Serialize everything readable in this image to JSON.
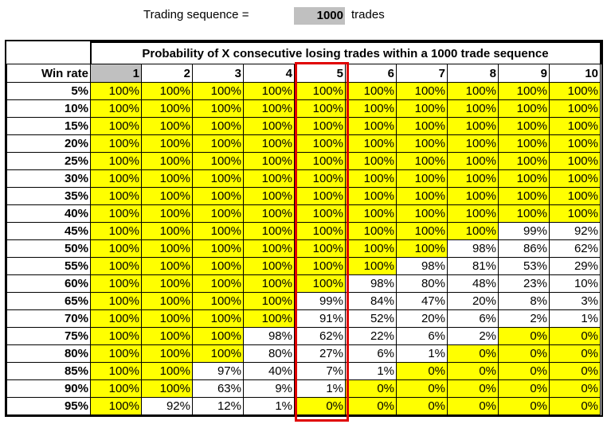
{
  "header": {
    "label": "Trading sequence =",
    "value": "1000",
    "unit": "trades"
  },
  "table": {
    "title": "Probability of X consecutive losing trades within a 1000 trade sequence",
    "row_header": "Win rate",
    "columns": [
      "1",
      "2",
      "3",
      "4",
      "5",
      "6",
      "7",
      "8",
      "9",
      "10"
    ],
    "rows": [
      {
        "label": "5%",
        "cells": [
          "100%",
          "100%",
          "100%",
          "100%",
          "100%",
          "100%",
          "100%",
          "100%",
          "100%",
          "100%"
        ]
      },
      {
        "label": "10%",
        "cells": [
          "100%",
          "100%",
          "100%",
          "100%",
          "100%",
          "100%",
          "100%",
          "100%",
          "100%",
          "100%"
        ]
      },
      {
        "label": "15%",
        "cells": [
          "100%",
          "100%",
          "100%",
          "100%",
          "100%",
          "100%",
          "100%",
          "100%",
          "100%",
          "100%"
        ]
      },
      {
        "label": "20%",
        "cells": [
          "100%",
          "100%",
          "100%",
          "100%",
          "100%",
          "100%",
          "100%",
          "100%",
          "100%",
          "100%"
        ]
      },
      {
        "label": "25%",
        "cells": [
          "100%",
          "100%",
          "100%",
          "100%",
          "100%",
          "100%",
          "100%",
          "100%",
          "100%",
          "100%"
        ]
      },
      {
        "label": "30%",
        "cells": [
          "100%",
          "100%",
          "100%",
          "100%",
          "100%",
          "100%",
          "100%",
          "100%",
          "100%",
          "100%"
        ]
      },
      {
        "label": "35%",
        "cells": [
          "100%",
          "100%",
          "100%",
          "100%",
          "100%",
          "100%",
          "100%",
          "100%",
          "100%",
          "100%"
        ]
      },
      {
        "label": "40%",
        "cells": [
          "100%",
          "100%",
          "100%",
          "100%",
          "100%",
          "100%",
          "100%",
          "100%",
          "100%",
          "100%"
        ]
      },
      {
        "label": "45%",
        "cells": [
          "100%",
          "100%",
          "100%",
          "100%",
          "100%",
          "100%",
          "100%",
          "100%",
          "99%",
          "92%"
        ]
      },
      {
        "label": "50%",
        "cells": [
          "100%",
          "100%",
          "100%",
          "100%",
          "100%",
          "100%",
          "100%",
          "98%",
          "86%",
          "62%"
        ]
      },
      {
        "label": "55%",
        "cells": [
          "100%",
          "100%",
          "100%",
          "100%",
          "100%",
          "100%",
          "98%",
          "81%",
          "53%",
          "29%"
        ]
      },
      {
        "label": "60%",
        "cells": [
          "100%",
          "100%",
          "100%",
          "100%",
          "100%",
          "98%",
          "80%",
          "48%",
          "23%",
          "10%"
        ]
      },
      {
        "label": "65%",
        "cells": [
          "100%",
          "100%",
          "100%",
          "100%",
          "99%",
          "84%",
          "47%",
          "20%",
          "8%",
          "3%"
        ]
      },
      {
        "label": "70%",
        "cells": [
          "100%",
          "100%",
          "100%",
          "100%",
          "91%",
          "52%",
          "20%",
          "6%",
          "2%",
          "1%"
        ]
      },
      {
        "label": "75%",
        "cells": [
          "100%",
          "100%",
          "100%",
          "98%",
          "62%",
          "22%",
          "6%",
          "2%",
          "0%",
          "0%"
        ]
      },
      {
        "label": "80%",
        "cells": [
          "100%",
          "100%",
          "100%",
          "80%",
          "27%",
          "6%",
          "1%",
          "0%",
          "0%",
          "0%"
        ]
      },
      {
        "label": "85%",
        "cells": [
          "100%",
          "100%",
          "97%",
          "40%",
          "7%",
          "1%",
          "0%",
          "0%",
          "0%",
          "0%"
        ]
      },
      {
        "label": "90%",
        "cells": [
          "100%",
          "100%",
          "63%",
          "9%",
          "1%",
          "0%",
          "0%",
          "0%",
          "0%",
          "0%"
        ]
      },
      {
        "label": "95%",
        "cells": [
          "100%",
          "92%",
          "12%",
          "1%",
          "0%",
          "0%",
          "0%",
          "0%",
          "0%",
          "0%"
        ]
      }
    ]
  }
}
